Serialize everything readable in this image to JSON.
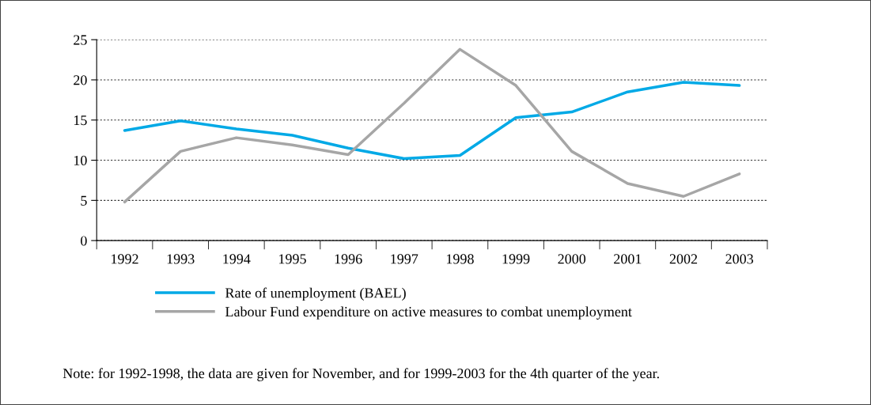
{
  "chart_data": {
    "type": "line",
    "categories": [
      "1992",
      "1993",
      "1994",
      "1995",
      "1996",
      "1997",
      "1998",
      "1999",
      "2000",
      "2001",
      "2002",
      "2003"
    ],
    "series": [
      {
        "name": "Rate of unemployment (BAEL)",
        "color": "#00a9e6",
        "values": [
          13.7,
          14.9,
          13.9,
          13.1,
          11.5,
          10.2,
          10.6,
          15.3,
          16.0,
          18.5,
          19.7,
          19.3
        ]
      },
      {
        "name": "Labour Fund expenditure on active measures to combat unemployment",
        "color": "#a6a6a6",
        "values": [
          4.8,
          11.1,
          12.8,
          11.9,
          10.7,
          17.1,
          23.8,
          19.3,
          11.1,
          7.1,
          5.5,
          8.3
        ]
      }
    ],
    "ylim": [
      0,
      25
    ],
    "yticks": [
      0,
      5,
      10,
      15,
      20,
      25
    ],
    "grid": "y",
    "legend": "bottom",
    "marker": "none",
    "line_style": "solid",
    "annotations": [
      "Note: for 1992-1998, the data are given for November, and for 1999-2003 for the 4th quarter of the year."
    ]
  }
}
